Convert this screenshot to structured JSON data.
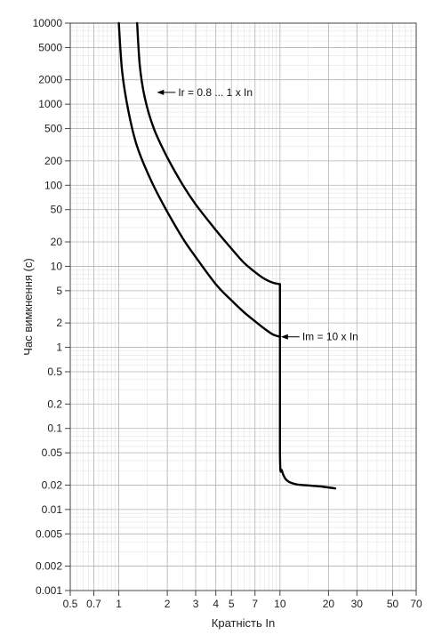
{
  "chart_data": {
    "type": "line",
    "title": "",
    "xlabel": "Кратність In",
    "ylabel": "Час вимкнення (с)",
    "x_scale": "log",
    "y_scale": "log",
    "xlim": [
      0.5,
      70
    ],
    "ylim": [
      0.001,
      10000
    ],
    "x_ticks": [
      {
        "value": 0.5,
        "label": "0.5"
      },
      {
        "value": 0.7,
        "label": "0.7"
      },
      {
        "value": 1,
        "label": "1"
      },
      {
        "value": 2,
        "label": "2"
      },
      {
        "value": 3,
        "label": "3"
      },
      {
        "value": 4,
        "label": "4"
      },
      {
        "value": 5,
        "label": "5"
      },
      {
        "value": 7,
        "label": "7"
      },
      {
        "value": 10,
        "label": "10"
      },
      {
        "value": 20,
        "label": "20"
      },
      {
        "value": 30,
        "label": "30"
      },
      {
        "value": 50,
        "label": "50"
      },
      {
        "value": 70,
        "label": "70"
      }
    ],
    "y_ticks": [
      {
        "value": 10000,
        "label": "10000"
      },
      {
        "value": 5000,
        "label": "5000"
      },
      {
        "value": 2000,
        "label": "2000"
      },
      {
        "value": 1000,
        "label": "1000"
      },
      {
        "value": 500,
        "label": "500"
      },
      {
        "value": 200,
        "label": "200"
      },
      {
        "value": 100,
        "label": "100"
      },
      {
        "value": 50,
        "label": "50"
      },
      {
        "value": 20,
        "label": "20"
      },
      {
        "value": 10,
        "label": "10"
      },
      {
        "value": 5,
        "label": "5"
      },
      {
        "value": 2,
        "label": "2"
      },
      {
        "value": 1,
        "label": "1"
      },
      {
        "value": 0.5,
        "label": "0.5"
      },
      {
        "value": 0.2,
        "label": "0.2"
      },
      {
        "value": 0.1,
        "label": "0.1"
      },
      {
        "value": 0.05,
        "label": "0.05"
      },
      {
        "value": 0.02,
        "label": "0.02"
      },
      {
        "value": 0.01,
        "label": "0.01"
      },
      {
        "value": 0.005,
        "label": "0.005"
      },
      {
        "value": 0.002,
        "label": "0.002"
      },
      {
        "value": 0.001,
        "label": "0.001"
      }
    ],
    "grid": true,
    "series": [
      {
        "points": [
          [
            1.0,
            10000
          ],
          [
            1.05,
            2500
          ],
          [
            1.15,
            800
          ],
          [
            1.3,
            300
          ],
          [
            1.6,
            110
          ],
          [
            2.0,
            47
          ],
          [
            2.5,
            22
          ],
          [
            3.0,
            13
          ],
          [
            4.0,
            6
          ],
          [
            5.0,
            3.8
          ],
          [
            6.0,
            2.7
          ],
          [
            7.0,
            2.1
          ],
          [
            8.0,
            1.7
          ],
          [
            9.0,
            1.45
          ],
          [
            10.0,
            1.35
          ]
        ]
      },
      {
        "points": [
          [
            1.3,
            10000
          ],
          [
            1.35,
            3000
          ],
          [
            1.45,
            1200
          ],
          [
            1.65,
            500
          ],
          [
            2.0,
            220
          ],
          [
            2.5,
            100
          ],
          [
            3.0,
            58
          ],
          [
            4.0,
            28
          ],
          [
            5.0,
            16.5
          ],
          [
            6.0,
            11
          ],
          [
            7.0,
            8.5
          ],
          [
            8.0,
            7
          ],
          [
            9.0,
            6.3
          ],
          [
            10.0,
            6
          ]
        ]
      },
      {
        "points": [
          [
            10.0,
            6
          ],
          [
            10.0,
            0.05
          ],
          [
            10.3,
            0.03
          ],
          [
            11.0,
            0.023
          ],
          [
            12.5,
            0.0205
          ],
          [
            15.0,
            0.0198
          ],
          [
            18.0,
            0.0192
          ],
          [
            22.0,
            0.0182
          ]
        ]
      }
    ],
    "annotations": [
      {
        "text": "Ir = 0.8 ... 1 x In",
        "x": 1.7,
        "y": 1400
      },
      {
        "text": "Im = 10 x In",
        "x": 10.0,
        "y": 1.35
      }
    ]
  }
}
